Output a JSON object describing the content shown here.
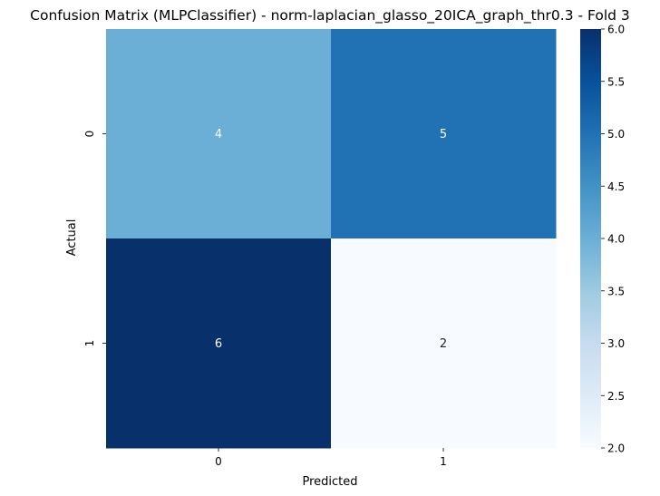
{
  "chart_data": {
    "type": "heatmap",
    "title": "Confusion Matrix (MLPClassifier) - norm-laplacian_glasso_20ICA_graph_thr0.3 - Fold 3",
    "xlabel": "Predicted",
    "ylabel": "Actual",
    "x_categories": [
      "0",
      "1"
    ],
    "y_categories": [
      "0",
      "1"
    ],
    "values": [
      [
        4,
        5
      ],
      [
        6,
        2
      ]
    ],
    "colormap": "Blues",
    "vmin": 2,
    "vmax": 6,
    "colorbar_ticks": [
      "2.0",
      "2.5",
      "3.0",
      "3.5",
      "4.0",
      "4.5",
      "5.0",
      "5.5",
      "6.0"
    ],
    "annotation_colors": {
      "light": "#ffffff",
      "dark": "#262626"
    }
  }
}
